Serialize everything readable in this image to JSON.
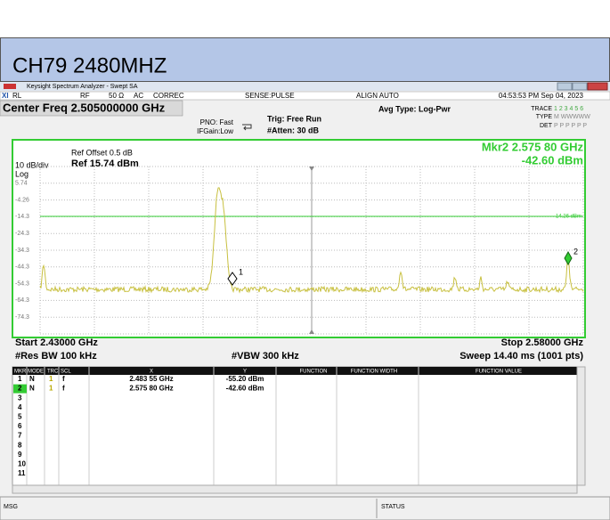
{
  "header": {
    "title": "CH79 2480MHZ"
  },
  "window": {
    "title": "Keysight Spectrum Analyzer - Swept SA"
  },
  "toolbar": {
    "logo": "XI",
    "rl": "RL",
    "rf": "RF",
    "impedance": "50 Ω",
    "coupling": "AC",
    "correction": "CORREC",
    "sense": "SENSE:PULSE",
    "align": "ALIGN AUTO",
    "datetime": "04:53:53 PM Sep 04, 2023"
  },
  "settings": {
    "center_freq": "Center Freq 2.505000000 GHz",
    "pno": "PNO: Fast",
    "ifgain": "IFGain:Low",
    "trig": "Trig: Free Run",
    "atten": "#Atten: 30 dB",
    "avg_type": "Avg Type: Log-Pwr",
    "trace_label": "TRACE",
    "trace_numbers": "1 2 3 4 5 6",
    "type_label": "TYPE",
    "type_value": "M WWWWW",
    "det_label": "DET",
    "det_value": "P P P P P P"
  },
  "display": {
    "ref_offset": "Ref Offset 0.5 dB",
    "scale": "10 dB/div",
    "ref_level": "Ref 15.74 dBm",
    "log": "Log",
    "marker_freq": "Mkr2 2.575 80 GHz",
    "marker_level": "-42.60 dBm",
    "y_labels": [
      "5.74",
      "-4.26",
      "-14.3",
      "-24.3",
      "-34.3",
      "-44.3",
      "-54.3",
      "-64.3",
      "-74.3"
    ],
    "display_line": "-14.26 dBm",
    "marker_labels": [
      "1",
      "2"
    ],
    "start": "Start 2.43000 GHz",
    "stop": "Stop 2.58000 GHz",
    "rbw": "#Res BW 100 kHz",
    "vbw": "#VBW 300 kHz",
    "sweep": "Sweep  14.40 ms (1001 pts)"
  },
  "marker_table": {
    "columns": [
      "MKR",
      "MODE",
      "TRC",
      "SCL",
      "X",
      "Y",
      "FUNCTION",
      "FUNCTION WIDTH",
      "FUNCTION VALUE"
    ],
    "rows": [
      [
        "1",
        "N",
        "1",
        "f",
        "2.483 55 GHz",
        "-55.20 dBm"
      ],
      [
        "2",
        "N",
        "1",
        "f",
        "2.575 80 GHz",
        "-42.60 dBm"
      ],
      [
        "3"
      ],
      [
        "4"
      ],
      [
        "5"
      ],
      [
        "6"
      ],
      [
        "7"
      ],
      [
        "8"
      ],
      [
        "9"
      ],
      [
        "10"
      ],
      [
        "11"
      ]
    ]
  },
  "status": {
    "msg": "MSG",
    "status": "STATUS"
  }
}
